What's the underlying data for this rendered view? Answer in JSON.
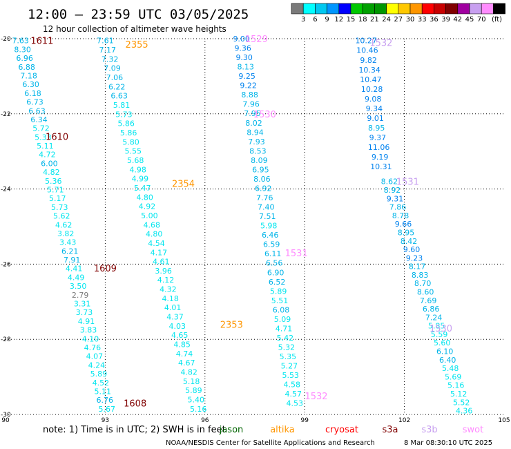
{
  "header": {
    "title": "12:00 – 23:59 UTC 03/05/2025",
    "subtitle": "12 hour collection of altimeter wave heights"
  },
  "footer": {
    "note": "note:  1) Time is in UTC; 2) SWH is in feet",
    "credit": "NOAA/NESDIS Center for Satellite Applications and Research",
    "timestamp": "8 Mar 08:30:10 UTC 2025"
  },
  "legend": {
    "unit": "(ft)",
    "bins": [
      {
        "label": "",
        "color": "#7a7a7a"
      },
      {
        "label": "3",
        "color": "#00ffff"
      },
      {
        "label": "6",
        "color": "#00c8f0"
      },
      {
        "label": "9",
        "color": "#0096ff"
      },
      {
        "label": "12",
        "color": "#0000ff"
      },
      {
        "label": "15",
        "color": "#00c800"
      },
      {
        "label": "18",
        "color": "#00a000"
      },
      {
        "label": "21",
        "color": "#009600"
      },
      {
        "label": "24",
        "color": "#ffff00"
      },
      {
        "label": "27",
        "color": "#ffc800"
      },
      {
        "label": "30",
        "color": "#ff9600"
      },
      {
        "label": "33",
        "color": "#ff0000"
      },
      {
        "label": "36",
        "color": "#c80000"
      },
      {
        "label": "39",
        "color": "#800000"
      },
      {
        "label": "42",
        "color": "#a000a0"
      },
      {
        "label": "45",
        "color": "#c8a0f0"
      },
      {
        "label": "70",
        "color": "#ff8cff"
      },
      {
        "label": "",
        "color": "#000000"
      }
    ]
  },
  "colors": {
    "lt3": "#7a7a7a",
    "b3": "#00e5ee",
    "b6": "#00b4e8",
    "b9": "#0082ee",
    "b12": "#0000d8",
    "jason": "#006400",
    "altika": "#ff9600",
    "cryosat": "#ff0000",
    "s3a": "#800000",
    "s3b": "#c8a0f0",
    "swot": "#ff8cff"
  },
  "chart_data": {
    "type": "scatter",
    "xlim": [
      90,
      105
    ],
    "ylim": [
      -30,
      -20
    ],
    "xticks": [
      "90",
      "93",
      "96",
      "99",
      "102",
      "105"
    ],
    "yticks": [
      "-20",
      "-22",
      "-24",
      "-26",
      "-28",
      "-30"
    ],
    "satellites": [
      "jason",
      "altika",
      "cryosat",
      "s3a",
      "s3b",
      "swot"
    ],
    "time_labels": [
      {
        "text": "1611",
        "lon": 91.1,
        "lat": -20.05,
        "sat": "s3a"
      },
      {
        "text": "1610",
        "lon": 91.55,
        "lat": -22.6,
        "sat": "s3a"
      },
      {
        "text": "1609",
        "lon": 93.0,
        "lat": -26.1,
        "sat": "s3a"
      },
      {
        "text": "1608",
        "lon": 93.9,
        "lat": -29.7,
        "sat": "s3a"
      },
      {
        "text": "2355",
        "lon": 93.95,
        "lat": -20.15,
        "sat": "altika"
      },
      {
        "text": "2354",
        "lon": 95.35,
        "lat": -23.85,
        "sat": "altika"
      },
      {
        "text": "2353",
        "lon": 96.8,
        "lat": -27.6,
        "sat": "altika"
      },
      {
        "text": "1529",
        "lon": 97.55,
        "lat": -20.0,
        "sat": "swot"
      },
      {
        "text": "1530",
        "lon": 97.8,
        "lat": -22.0,
        "sat": "swot"
      },
      {
        "text": "1531",
        "lon": 98.75,
        "lat": -25.7,
        "sat": "swot"
      },
      {
        "text": "1532",
        "lon": 99.35,
        "lat": -29.5,
        "sat": "swot"
      },
      {
        "text": "1532",
        "lon": 101.3,
        "lat": -20.1,
        "sat": "s3b"
      },
      {
        "text": "1531",
        "lon": 102.1,
        "lat": -23.8,
        "sat": "s3b"
      },
      {
        "text": "1530",
        "lon": 103.1,
        "lat": -27.7,
        "sat": "s3b"
      }
    ],
    "tracks": [
      {
        "sat": "s3a",
        "lon_start": 90.45,
        "lat_start": -20.05,
        "lon_end": 93.05,
        "lat_end": -29.85,
        "values": [
          "7.63",
          "8.30",
          "6.96",
          "6.88",
          "7.18",
          "6.30",
          "6.18",
          "6.73",
          "6.63",
          "6.34",
          "5.72",
          "5.33",
          "5.11",
          "4.72",
          "6.00",
          "4.82",
          "5.36",
          "5.71",
          "5.17",
          "5.73",
          "5.62",
          "4.62",
          "3.82",
          "3.43",
          "6.21",
          "7.91",
          "4.41",
          "4.49",
          "3.50",
          "2.79",
          "3.31",
          "3.73",
          "4.91",
          "3.83",
          "4.10",
          "4.76",
          "4.07",
          "4.24",
          "5.89",
          "4.52",
          "5.11",
          "6.76",
          "5.67"
        ]
      },
      {
        "sat": "altika",
        "lon_start": 93.0,
        "lat_start": -20.05,
        "lon_end": 95.8,
        "lat_end": -29.85,
        "values": [
          "7.61",
          "7.17",
          "7.32",
          "7.09",
          "7.06",
          "6.22",
          "6.63",
          "5.81",
          "5.73",
          "5.86",
          "5.86",
          "5.80",
          "5.55",
          "5.68",
          "4.98",
          "4.99",
          "5.47",
          "4.80",
          "4.92",
          "5.00",
          "4.68",
          "4.80",
          "4.54",
          "4.17",
          "4.61",
          "3.96",
          "4.12",
          "4.32",
          "4.18",
          "4.01",
          "4.37",
          "4.03",
          "4.65",
          "4.85",
          "4.74",
          "4.67",
          "4.82",
          "5.18",
          "5.89",
          "5.40",
          "5.16"
        ]
      },
      {
        "sat": "swot",
        "lon_start": 97.1,
        "lat_start": -20.0,
        "lon_end": 98.7,
        "lat_end": -29.7,
        "values": [
          "9.00",
          "9.36",
          "9.30",
          "8.13",
          "9.25",
          "9.22",
          "8.88",
          "7.96",
          "7.95",
          "8.02",
          "8.94",
          "7.93",
          "8.53",
          "8.09",
          "6.95",
          "8.06",
          "6.92",
          "7.76",
          "7.40",
          "7.51",
          "5.98",
          "6.46",
          "6.59",
          "6.11",
          "6.56",
          "6.90",
          "6.52",
          "5.89",
          "5.51",
          "6.08",
          "5.09",
          "4.71",
          "5.42",
          "5.32",
          "5.35",
          "5.27",
          "5.53",
          "4.58",
          "4.57",
          "4.53"
        ]
      },
      {
        "sat": "s3b",
        "lon_start": 100.85,
        "lat_start": -20.05,
        "lon_end": 101.3,
        "lat_end": -23.4,
        "values": [
          "10.27",
          "10.46",
          "9.82",
          "10.34",
          "10.47",
          "10.28",
          "9.08",
          "9.34",
          "9.01",
          "8.95",
          "9.37",
          "11.06",
          "9.19",
          "10.31"
        ]
      },
      {
        "sat": "s3b",
        "lon_start": 101.55,
        "lat_start": -23.8,
        "lon_end": 103.8,
        "lat_end": -29.9,
        "values": [
          "8.62",
          "8.92",
          "9.31",
          "7.86",
          "8.78",
          "9.66",
          "8.95",
          "8.42",
          "9.60",
          "9.23",
          "8.17",
          "8.83",
          "8.70",
          "8.60",
          "7.69",
          "6.86",
          "7.24",
          "5.85",
          "5.59",
          "5.60",
          "6.10",
          "6.40",
          "5.48",
          "5.69",
          "5.16",
          "5.12",
          "5.52",
          "4.36"
        ]
      }
    ]
  }
}
